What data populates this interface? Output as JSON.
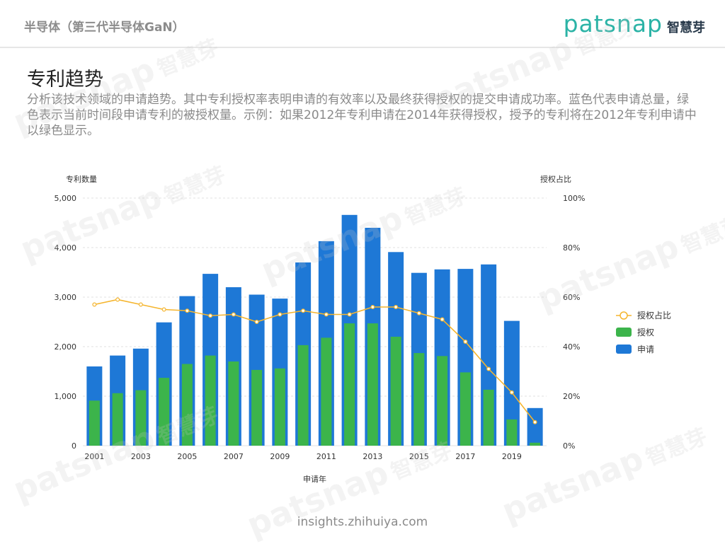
{
  "header": {
    "section_title": "半导体（第三代半导体GaN）",
    "logo_text_en": "patsnap",
    "logo_text_cn": "智慧芽"
  },
  "page": {
    "title": "专利趋势",
    "description": "分析该技术领域的申请趋势。其中专利授权率表明申请的有效率以及最终获得授权的提交申请成功率。蓝色代表申请总量，绿色表示当前时间段申请专利的被授权量。示例：如果2012年专利申请在2014年获得授权，授予的专利将在2012年专利申请中以绿色显示。"
  },
  "watermark": {
    "en": "patsnap",
    "cn": "智慧芽"
  },
  "footer": {
    "text": "insights.zhihuiya.com"
  },
  "colors": {
    "applications": "#1e78d6",
    "grants": "#3cb44b",
    "ratio": "#f5b52e",
    "grid": "#e0e0e0"
  },
  "chart_data": {
    "type": "bar",
    "xlabel": "申请年",
    "ylabel": "专利数量",
    "y2label": "授权占比",
    "ylim": [
      0,
      5000
    ],
    "y2lim": [
      0,
      100
    ],
    "yticks": [
      "0",
      "1,000",
      "2,000",
      "3,000",
      "4,000",
      "5,000"
    ],
    "y2ticks": [
      "0%",
      "20%",
      "40%",
      "60%",
      "80%",
      "100%"
    ],
    "xtick_labels": [
      "2001",
      "2003",
      "2005",
      "2007",
      "2009",
      "2011",
      "2013",
      "2015",
      "2017",
      "2019"
    ],
    "categories": [
      "2001",
      "2002",
      "2003",
      "2004",
      "2005",
      "2006",
      "2007",
      "2008",
      "2009",
      "2010",
      "2011",
      "2012",
      "2013",
      "2014",
      "2015",
      "2016",
      "2017",
      "2018",
      "2019",
      "2020"
    ],
    "series": [
      {
        "name": "申请",
        "kind": "bar",
        "values": [
          1600,
          1820,
          1960,
          2490,
          3020,
          3470,
          3200,
          3050,
          2970,
          3700,
          4130,
          4660,
          4400,
          3910,
          3490,
          3560,
          3570,
          3660,
          2520,
          760
        ]
      },
      {
        "name": "授权",
        "kind": "bar",
        "values": [
          910,
          1060,
          1120,
          1370,
          1650,
          1820,
          1700,
          1530,
          1560,
          2030,
          2180,
          2470,
          2470,
          2200,
          1870,
          1810,
          1480,
          1130,
          530,
          60
        ]
      },
      {
        "name": "授权占比",
        "kind": "line",
        "axis": "right",
        "values": [
          57,
          59,
          57,
          55,
          54.5,
          52.5,
          53,
          50,
          53,
          54.5,
          53,
          53,
          56,
          56,
          53.5,
          51,
          42,
          31,
          21.5,
          9.5
        ]
      }
    ],
    "legend": [
      "授权占比",
      "授权",
      "申请"
    ],
    "legend_position": "right"
  }
}
